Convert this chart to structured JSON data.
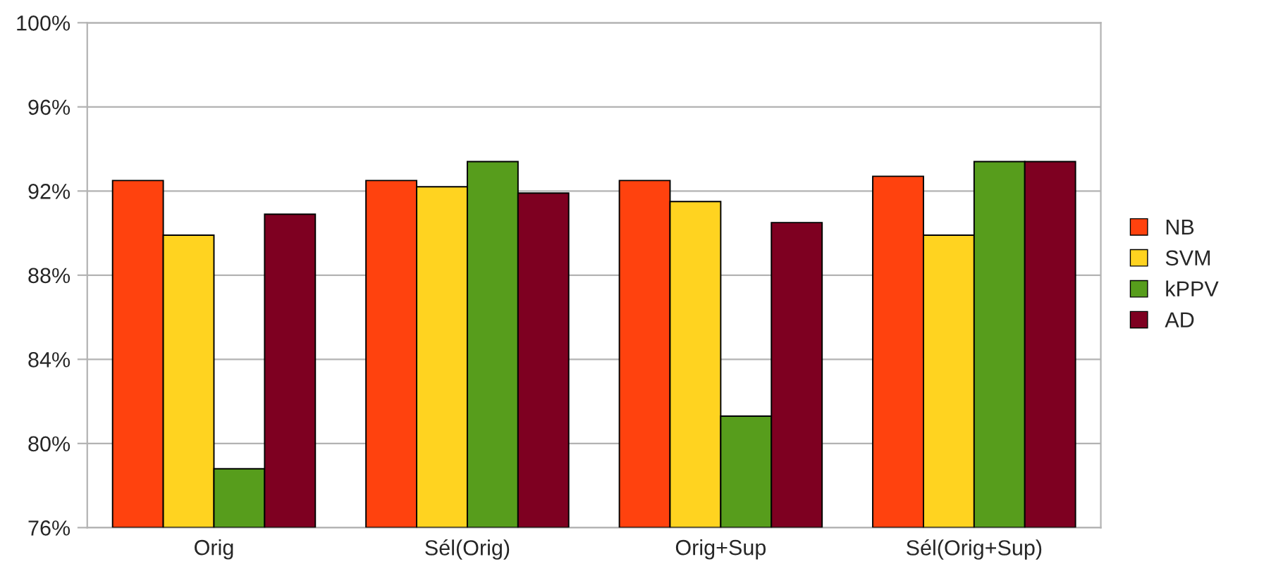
{
  "chart_data": {
    "type": "bar",
    "categories": [
      "Orig",
      "Sél(Orig)",
      "Orig+Sup",
      "Sél(Orig+Sup)"
    ],
    "series": [
      {
        "name": "NB",
        "color": "#ff420e",
        "values": [
          92.5,
          92.5,
          92.5,
          92.7
        ]
      },
      {
        "name": "SVM",
        "color": "#ffd320",
        "values": [
          89.9,
          92.2,
          91.5,
          89.9
        ]
      },
      {
        "name": "kPPV",
        "color": "#579d1c",
        "values": [
          78.8,
          93.4,
          81.3,
          93.4
        ]
      },
      {
        "name": "AD",
        "color": "#7e0021",
        "values": [
          90.9,
          91.9,
          90.5,
          93.4
        ]
      }
    ],
    "ylim": [
      76,
      100
    ],
    "yticks": [
      {
        "value": 76,
        "label": "76%"
      },
      {
        "value": 80,
        "label": "80%"
      },
      {
        "value": 84,
        "label": "84%"
      },
      {
        "value": 88,
        "label": "88%"
      },
      {
        "value": 92,
        "label": "92%"
      },
      {
        "value": 96,
        "label": "96%"
      },
      {
        "value": 100,
        "label": "100%"
      }
    ],
    "grid": "y",
    "legend": "right"
  }
}
